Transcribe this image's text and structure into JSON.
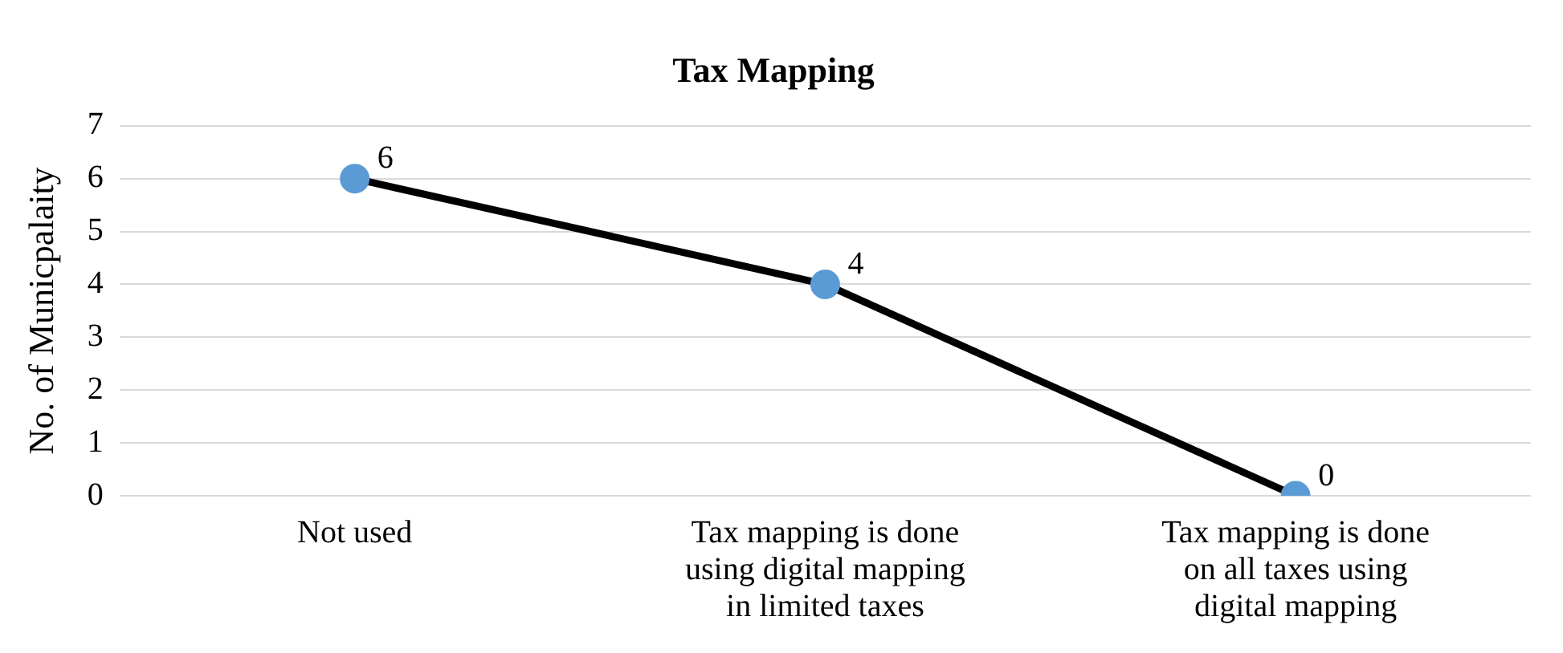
{
  "chart_data": {
    "type": "line",
    "title": "Tax Mapping",
    "ylabel": "No. of Municpalaity",
    "categories": [
      "Not used",
      "Tax mapping is done using digital mapping in limited taxes",
      "Tax mapping is done on all taxes using digital mapping"
    ],
    "series": [
      {
        "color": "#000000",
        "colors": [
          "#5b9bd5",
          "#5b9bd5",
          "#5b9bd5"
        ],
        "values": [
          6,
          4,
          0
        ]
      }
    ],
    "ylim": [
      0,
      7
    ],
    "yticks": [
      0,
      1,
      2,
      3,
      4,
      5,
      6,
      7
    ],
    "grid": "y",
    "legend": false,
    "marker": "circle",
    "line_style": "solid",
    "data_labels": true
  }
}
